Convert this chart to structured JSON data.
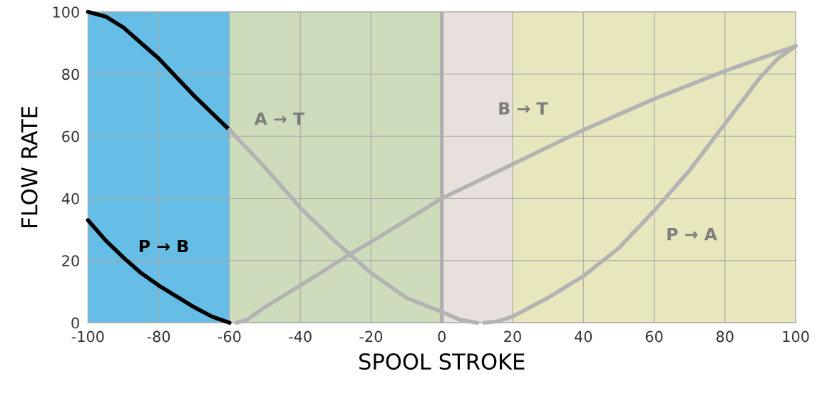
{
  "chart_data": {
    "type": "line",
    "xlabel": "SPOOL STROKE",
    "ylabel": "FLOW RATE",
    "xlim": [
      -100,
      100
    ],
    "ylim": [
      0,
      100
    ],
    "xticks": [
      -100,
      -80,
      -60,
      -40,
      -20,
      0,
      20,
      40,
      60,
      80,
      100
    ],
    "yticks": [
      0,
      20,
      40,
      60,
      80,
      100
    ],
    "grid": true,
    "legend": false,
    "marker": "none",
    "line_style": "solid",
    "bands": [
      {
        "axis": "x",
        "from": -100,
        "to": -60,
        "color": "#66bde6"
      },
      {
        "axis": "x",
        "from": -60,
        "to": 0,
        "color": "#cfdcbc"
      },
      {
        "axis": "x",
        "from": 0,
        "to": 20,
        "color": "#e8e0dc"
      },
      {
        "axis": "x",
        "from": 20,
        "to": 100,
        "color": "#e8e6bc"
      }
    ],
    "ref_lines": [
      {
        "axis": "x",
        "value": 0,
        "color": "#b3b3b3"
      }
    ],
    "series": [
      {
        "color": "#000000",
        "x": [
          -100,
          -95,
          -90,
          -85,
          -80,
          -75,
          -70,
          -65,
          -60
        ],
        "values": [
          100,
          98.5,
          95,
          90,
          85,
          79,
          73,
          67.5,
          62
        ]
      },
      {
        "name": "A → T",
        "color": "#b3b3b3",
        "x": [
          -60,
          -50,
          -40,
          -30,
          -26,
          -20,
          -10,
          0,
          5,
          10
        ],
        "values": [
          62,
          50,
          37,
          26,
          22,
          16,
          8,
          3.5,
          1,
          0
        ]
      },
      {
        "name": "P → B",
        "color": "#000000",
        "x": [
          -100,
          -95,
          -90,
          -85,
          -80,
          -75,
          -70,
          -65,
          -60
        ],
        "values": [
          33,
          26.5,
          21,
          16,
          12,
          8.5,
          5,
          2,
          0
        ]
      },
      {
        "name": "B → T",
        "color": "#b3b3b3",
        "x": [
          -58,
          -55,
          -50,
          -40,
          -26,
          -20,
          0,
          20,
          40,
          60,
          80,
          100
        ],
        "values": [
          0,
          1,
          5,
          12,
          22,
          26,
          40,
          51,
          62,
          72,
          81,
          89
        ]
      },
      {
        "name": "P → A",
        "color": "#b3b3b3",
        "x": [
          12,
          16,
          20,
          30,
          40,
          50,
          60,
          70,
          80,
          90,
          95,
          100
        ],
        "values": [
          0,
          0.5,
          2,
          8,
          15,
          24,
          36,
          49,
          64,
          79,
          85,
          89
        ]
      }
    ]
  }
}
